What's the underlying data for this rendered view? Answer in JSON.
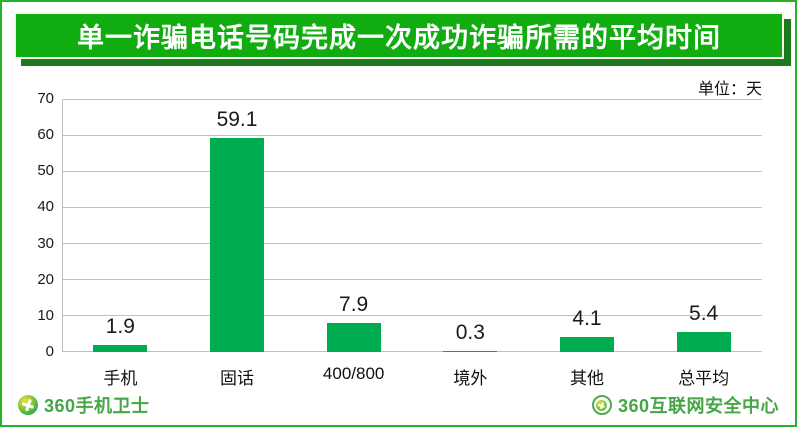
{
  "page": {
    "title": "单一诈骗电话号码完成一次成功诈骗所需的平均时间",
    "unit_label": "单位：天"
  },
  "chart_data": {
    "type": "bar",
    "title": "单一诈骗电话号码完成一次成功诈骗所需的平均时间",
    "unit": "单位：天",
    "categories": [
      "手机",
      "固话",
      "400/800",
      "境外",
      "其他",
      "总平均"
    ],
    "values": [
      1.9,
      59.1,
      7.9,
      0.3,
      4.1,
      5.4
    ],
    "value_labels": [
      "1.9",
      "59.1",
      "7.9",
      "0.3",
      "4.1",
      "5.4"
    ],
    "xlabel": "",
    "ylabel": "",
    "ylim": [
      0,
      70
    ],
    "ytick_step": 10,
    "yticks": [
      0,
      10,
      20,
      30,
      40,
      50,
      60,
      70
    ],
    "grid": true,
    "legend_position": "none",
    "bar_color": "#00AC50"
  },
  "colors": {
    "banner_green": "#10AC10",
    "banner_shadow_green": "#1C7A1C",
    "page_border_green": "#27B327",
    "bar_green": "#00AC50",
    "gridline_gray": "#BFBFBF",
    "logo_green": "#46A546",
    "title_text": "#FFFFFF",
    "body_text": "#1A1A1A"
  },
  "footer": {
    "left_brand": "360手机卫士",
    "right_brand": "360互联网安全中心"
  }
}
